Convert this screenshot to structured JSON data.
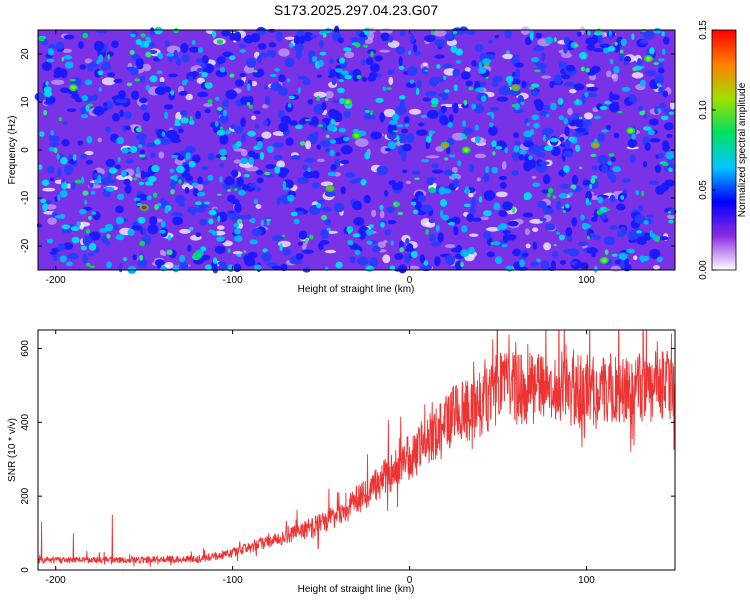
{
  "title": "S173.2025.297.04.23.G07",
  "chart_data": [
    {
      "type": "heatmap",
      "xlabel": "Height of straight line (km)",
      "ylabel": "Frequency (Hz)",
      "xlim": [
        -210,
        150
      ],
      "ylim": [
        -25,
        25
      ],
      "xticks": [
        -200,
        -100,
        0,
        100
      ],
      "yticks": [
        -20,
        -10,
        0,
        10,
        20
      ],
      "colorbar": {
        "label": "Normalized spectral amplitude",
        "range": [
          0.0,
          0.15
        ],
        "ticks": [
          "0.00",
          "0.05",
          "0.10",
          "0.15"
        ],
        "colors": [
          "#ffffff",
          "#8a2be2",
          "#0000ff",
          "#00c8ff",
          "#00e060",
          "#a0e000",
          "#ff8000",
          "#ff0000"
        ]
      },
      "hotspots": [
        {
          "x": -150,
          "y": -12,
          "v": 0.14
        },
        {
          "x": 20,
          "y": 1,
          "v": 0.13
        },
        {
          "x": 105,
          "y": 1,
          "v": 0.13
        },
        {
          "x": -45,
          "y": -8,
          "v": 0.12
        },
        {
          "x": 60,
          "y": 13,
          "v": 0.12
        },
        {
          "x": -190,
          "y": 13,
          "v": 0.11
        },
        {
          "x": 135,
          "y": 19,
          "v": 0.11
        },
        {
          "x": -35,
          "y": 10,
          "v": 0.11
        },
        {
          "x": 110,
          "y": -23,
          "v": 0.11
        },
        {
          "x": -30,
          "y": 3,
          "v": 0.1
        },
        {
          "x": 32,
          "y": 0,
          "v": 0.1
        },
        {
          "x": 125,
          "y": 4,
          "v": 0.1
        },
        {
          "x": -120,
          "y": -22,
          "v": 0.09
        }
      ]
    },
    {
      "type": "line",
      "xlabel": "Height of straight line (km)",
      "ylabel": "SNR (10 * v/v)",
      "xlim": [
        -210,
        150
      ],
      "ylim": [
        0,
        650
      ],
      "xticks": [
        -200,
        -100,
        0,
        100
      ],
      "yticks": [
        0,
        200,
        400,
        600
      ],
      "color": "#ee3333",
      "envelope": {
        "x": [
          -210,
          -120,
          -100,
          -80,
          -60,
          -40,
          -25,
          -15,
          -5,
          5,
          15,
          25,
          35,
          45,
          50,
          60,
          80,
          100,
          120,
          150
        ],
        "y": [
          25,
          28,
          45,
          75,
          105,
          145,
          200,
          245,
          280,
          320,
          370,
          410,
          430,
          450,
          490,
          480,
          485,
          480,
          480,
          490
        ]
      },
      "spikes": [
        {
          "x": -208,
          "y": 130
        },
        {
          "x": -168,
          "y": 150
        },
        {
          "x": -190,
          "y": 100
        },
        {
          "x": -5,
          "y": 415
        },
        {
          "x": 47,
          "y": 625
        },
        {
          "x": 148,
          "y": 640
        },
        {
          "x": 140,
          "y": 620
        },
        {
          "x": 125,
          "y": 320
        }
      ]
    }
  ]
}
